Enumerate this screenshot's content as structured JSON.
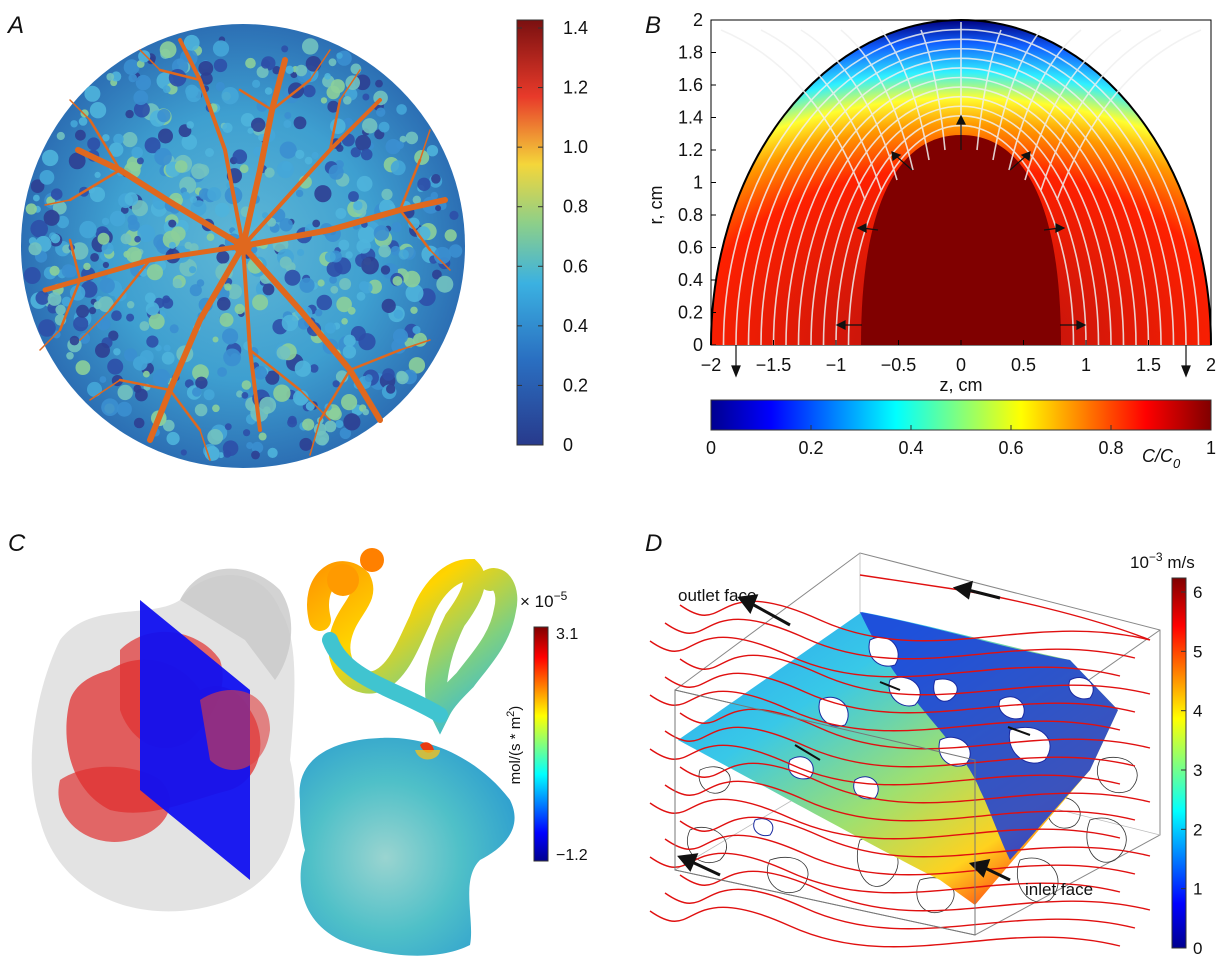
{
  "panels": {
    "a": {
      "letter": "A",
      "colorbar": {
        "ticks": [
          "1.4",
          "1.2",
          "1.0",
          "0.8",
          "0.6",
          "0.4",
          "0.2",
          "0"
        ]
      }
    },
    "b": {
      "letter": "B",
      "y_label": "r, cm",
      "y_ticks": [
        "2",
        "1.8",
        "1.6",
        "1.4",
        "1.2",
        "1",
        "0.8",
        "0.6",
        "0.4",
        "0.2",
        "0"
      ],
      "x_label": "z, cm",
      "x_ticks": [
        "−2",
        "−1.5",
        "−1",
        "−0.5",
        "0",
        "0.5",
        "1",
        "1.5",
        "2"
      ],
      "colorbar": {
        "ticks": [
          "0",
          "0.2",
          "0.4",
          "0.6",
          "0.8",
          "1"
        ],
        "label_main": "C/C",
        "label_sub": "0"
      }
    },
    "c": {
      "letter": "C",
      "scale_factor": "× 10",
      "scale_exp": "−5",
      "colorbar": {
        "max": "3.1",
        "min": "−1.2",
        "unit_a": "mol/(s * m",
        "unit_sup": "2",
        "unit_b": ")"
      }
    },
    "d": {
      "letter": "D",
      "unit_base": "10",
      "unit_exp": "−3",
      "unit_rest": " m/s",
      "outlet_label": "outlet face",
      "inlet_label": "inlet face",
      "colorbar": {
        "ticks": [
          "6",
          "5",
          "4",
          "3",
          "2",
          "1",
          "0"
        ]
      }
    }
  },
  "colors": {
    "jet_dark_red": "#800000",
    "jet_red": "#ff0000",
    "jet_yellow": "#ffff00",
    "jet_cyan": "#00ffff",
    "jet_blue": "#0000ff",
    "jet_dark_blue": "#00008f",
    "vessel_orange": "#e0681e",
    "plane_blue": "#1010f0"
  }
}
